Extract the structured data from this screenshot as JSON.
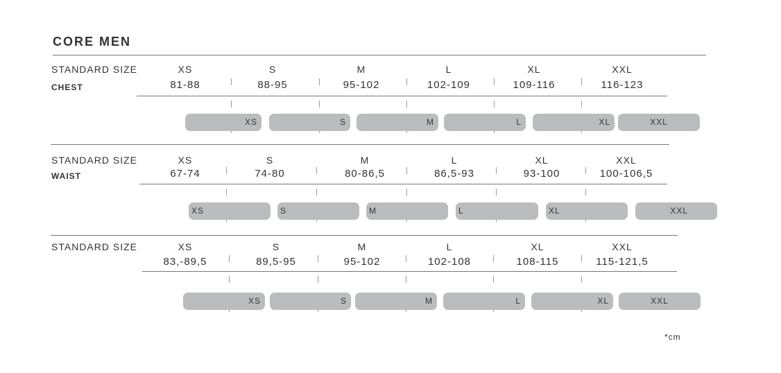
{
  "title": "CORE MEN",
  "sections": [
    {
      "label": "STANDARD SIZE",
      "sublabel": "CHEST",
      "sizes": [
        "XS",
        "S",
        "M",
        "L",
        "XL",
        "XXL"
      ],
      "ranges": [
        "81-88",
        "88-95",
        "95-102",
        "102-109",
        "109-116",
        "116-123"
      ],
      "bars": [
        "XS",
        "S",
        "M",
        "L",
        "XL",
        "XXL"
      ]
    },
    {
      "label": "STANDARD SIZE",
      "sublabel": "WAIST",
      "sizes": [
        "XS",
        "S",
        "M",
        "L",
        "XL",
        "XXL"
      ],
      "ranges": [
        "67-74",
        "74-80",
        "80-86,5",
        "86,5-93",
        "93-100",
        "100-106,5"
      ],
      "bars": [
        "XS",
        "S",
        "M",
        "L",
        "XL",
        "XXL"
      ]
    },
    {
      "label": "STANDARD SIZE",
      "sizes": [
        "XS",
        "S",
        "M",
        "L",
        "XL",
        "XXL"
      ],
      "ranges": [
        "83,-89,5",
        "89,5-95",
        "95-102",
        "102-108",
        "108-115",
        "115-121,5"
      ],
      "bars": [
        "XS",
        "S",
        "M",
        "L",
        "XL",
        "XXL"
      ]
    }
  ],
  "footnote": "*cm"
}
